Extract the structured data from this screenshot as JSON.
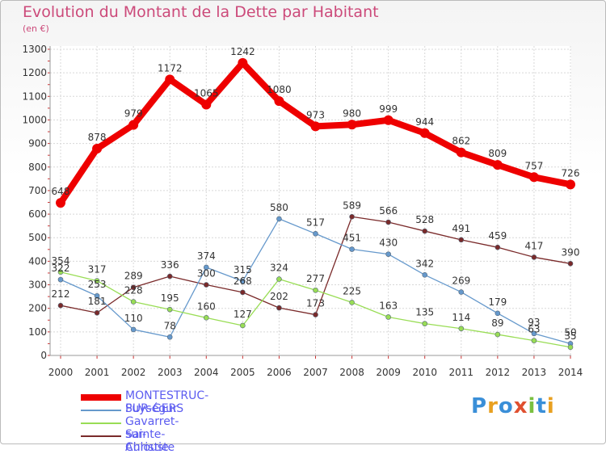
{
  "title": "Evolution du Montant de la Dette par Habitant",
  "unit_label": "(en €)",
  "logo_text": "Proxiti",
  "colors": {
    "title": "#cc4a7a",
    "axis_text": "#333333",
    "legend_text": "#5c5cf0"
  },
  "chart_data": {
    "type": "line",
    "title": "Evolution du Montant de la Dette par Habitant",
    "ylabel": "(en €)",
    "xlabel": "",
    "x": [
      2000,
      2001,
      2002,
      2003,
      2004,
      2005,
      2006,
      2007,
      2008,
      2009,
      2010,
      2011,
      2012,
      2013,
      2014
    ],
    "ylim": [
      0,
      1300
    ],
    "yticks": [
      0,
      100,
      200,
      300,
      400,
      500,
      600,
      700,
      800,
      900,
      1000,
      1100,
      1200,
      1300
    ],
    "grid": true,
    "legend_position": "bottom-left",
    "series": [
      {
        "name": "MONTESTRUC-SUR-GERS",
        "color": "#ee0000",
        "values": [
          648,
          878,
          979,
          1172,
          1065,
          1242,
          1080,
          973,
          980,
          999,
          944,
          862,
          809,
          757,
          726
        ]
      },
      {
        "name": "Puységur",
        "color": "#6699cc",
        "values": [
          322,
          253,
          110,
          78,
          374,
          315,
          580,
          517,
          451,
          430,
          342,
          269,
          179,
          93,
          50
        ]
      },
      {
        "name": "Gavarret-sur-Aulouste",
        "color": "#99dd55",
        "values": [
          354,
          317,
          228,
          195,
          160,
          127,
          324,
          277,
          225,
          163,
          135,
          114,
          89,
          63,
          35
        ]
      },
      {
        "name": "Sainte-Christie",
        "color": "#7a2a2a",
        "values": [
          212,
          181,
          289,
          336,
          300,
          268,
          202,
          173,
          589,
          566,
          528,
          491,
          459,
          417,
          390
        ]
      }
    ]
  }
}
